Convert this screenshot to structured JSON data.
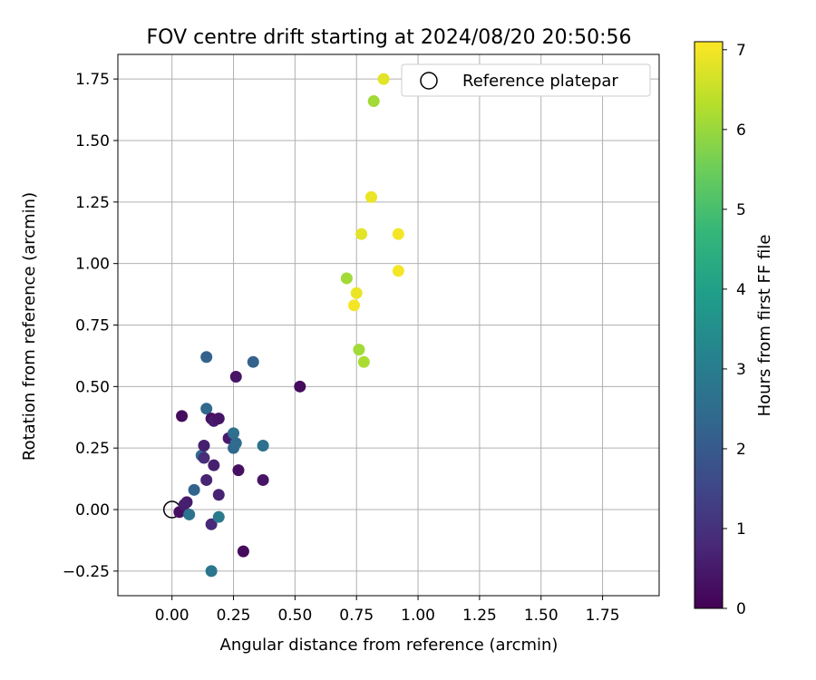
{
  "chart_data": {
    "type": "scatter",
    "title": "FOV centre drift starting at 2024/08/20 20:50:56",
    "xlabel": "Angular distance from reference (arcmin)",
    "ylabel": "Rotation from reference (arcmin)",
    "xlim": [
      -0.22,
      1.98
    ],
    "ylim": [
      -0.35,
      1.85
    ],
    "xticks": [
      0.0,
      0.25,
      0.5,
      0.75,
      1.0,
      1.25,
      1.5,
      1.75
    ],
    "xtick_labels": [
      "0.00",
      "0.25",
      "0.50",
      "0.75",
      "1.00",
      "1.25",
      "1.50",
      "1.75"
    ],
    "yticks": [
      -0.25,
      0.0,
      0.25,
      0.5,
      0.75,
      1.0,
      1.25,
      1.5,
      1.75
    ],
    "ytick_labels": [
      "−0.25",
      "0.00",
      "0.25",
      "0.50",
      "0.75",
      "1.00",
      "1.25",
      "1.50",
      "1.75"
    ],
    "grid": true,
    "legend": {
      "position": "top-right",
      "entries": [
        "Reference platepar"
      ]
    },
    "reference_point": {
      "x": 0.0,
      "y": 0.0
    },
    "colorbar": {
      "label": "Hours from first FF file",
      "min": 0,
      "max": 7.1,
      "ticks": [
        0,
        1,
        2,
        3,
        4,
        5,
        6,
        7
      ],
      "colormap": "viridis"
    },
    "points": [
      {
        "x": 0.04,
        "y": 0.38,
        "h": 0.2
      },
      {
        "x": 0.03,
        "y": -0.01,
        "h": 0.3
      },
      {
        "x": 0.06,
        "y": 0.03,
        "h": 0.5
      },
      {
        "x": 0.05,
        "y": 0.02,
        "h": 0.6
      },
      {
        "x": 0.07,
        "y": -0.02,
        "h": 2.7
      },
      {
        "x": 0.09,
        "y": 0.08,
        "h": 2.3
      },
      {
        "x": 0.12,
        "y": 0.22,
        "h": 2.5
      },
      {
        "x": 0.13,
        "y": 0.26,
        "h": 0.6
      },
      {
        "x": 0.14,
        "y": 0.12,
        "h": 0.7
      },
      {
        "x": 0.13,
        "y": 0.21,
        "h": 0.9
      },
      {
        "x": 0.14,
        "y": 0.41,
        "h": 2.4
      },
      {
        "x": 0.14,
        "y": 0.62,
        "h": 2.2
      },
      {
        "x": 0.16,
        "y": 0.37,
        "h": 0.3
      },
      {
        "x": 0.17,
        "y": 0.36,
        "h": 0.5
      },
      {
        "x": 0.19,
        "y": 0.37,
        "h": 0.4
      },
      {
        "x": 0.17,
        "y": 0.18,
        "h": 0.6
      },
      {
        "x": 0.16,
        "y": -0.06,
        "h": 0.8
      },
      {
        "x": 0.16,
        "y": -0.25,
        "h": 2.8
      },
      {
        "x": 0.19,
        "y": 0.06,
        "h": 0.7
      },
      {
        "x": 0.19,
        "y": -0.03,
        "h": 2.9
      },
      {
        "x": 0.23,
        "y": 0.29,
        "h": 0.5
      },
      {
        "x": 0.25,
        "y": 0.31,
        "h": 2.6
      },
      {
        "x": 0.25,
        "y": 0.25,
        "h": 2.4
      },
      {
        "x": 0.26,
        "y": 0.27,
        "h": 2.5
      },
      {
        "x": 0.26,
        "y": 0.54,
        "h": 0.4
      },
      {
        "x": 0.27,
        "y": 0.16,
        "h": 0.3
      },
      {
        "x": 0.29,
        "y": -0.17,
        "h": 0.2
      },
      {
        "x": 0.33,
        "y": 0.6,
        "h": 2.2
      },
      {
        "x": 0.37,
        "y": 0.26,
        "h": 2.6
      },
      {
        "x": 0.37,
        "y": 0.12,
        "h": 0.4
      },
      {
        "x": 0.52,
        "y": 0.5,
        "h": 0.2
      },
      {
        "x": 0.71,
        "y": 0.94,
        "h": 6.1
      },
      {
        "x": 0.74,
        "y": 0.83,
        "h": 7.0
      },
      {
        "x": 0.75,
        "y": 0.88,
        "h": 6.9
      },
      {
        "x": 0.76,
        "y": 0.65,
        "h": 6.1
      },
      {
        "x": 0.77,
        "y": 1.12,
        "h": 6.8
      },
      {
        "x": 0.78,
        "y": 0.6,
        "h": 6.2
      },
      {
        "x": 0.81,
        "y": 1.27,
        "h": 6.9
      },
      {
        "x": 0.82,
        "y": 1.66,
        "h": 6.1
      },
      {
        "x": 0.86,
        "y": 1.75,
        "h": 6.8
      },
      {
        "x": 0.92,
        "y": 1.12,
        "h": 7.0
      },
      {
        "x": 0.92,
        "y": 0.97,
        "h": 7.0
      }
    ]
  }
}
